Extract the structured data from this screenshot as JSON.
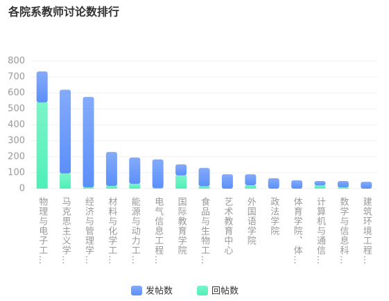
{
  "chart_data": {
    "type": "bar",
    "stacked": true,
    "title": "各院系教师讨论数排行",
    "categories": [
      "物理与电子工…",
      "马克思主义学…",
      "经济与管理学…",
      "材料与化学工…",
      "能源与动力工…",
      "电气信息工程…",
      "国际教育学院",
      "食品与生物工…",
      "艺术教育中心",
      "外国语学院",
      "政法学院",
      "体育学院、体…",
      "计算机与通信…",
      "数学与信息科…",
      "建筑环境工程…"
    ],
    "series": [
      {
        "name": "发帖数",
        "color": "#5b8ff9",
        "values": [
          195,
          525,
          567,
          213,
          165,
          180,
          69,
          115,
          90,
          68,
          65,
          52,
          28,
          40,
          43
        ]
      },
      {
        "name": "回帖数",
        "color": "#4ff0b8",
        "values": [
          540,
          95,
          8,
          17,
          30,
          3,
          83,
          15,
          0,
          22,
          0,
          0,
          20,
          8,
          0
        ]
      }
    ],
    "ylim": [
      0,
      800
    ],
    "yticks": [
      0,
      100,
      200,
      300,
      400,
      500,
      600,
      700,
      800
    ],
    "grid": true,
    "legend": "bottom"
  }
}
